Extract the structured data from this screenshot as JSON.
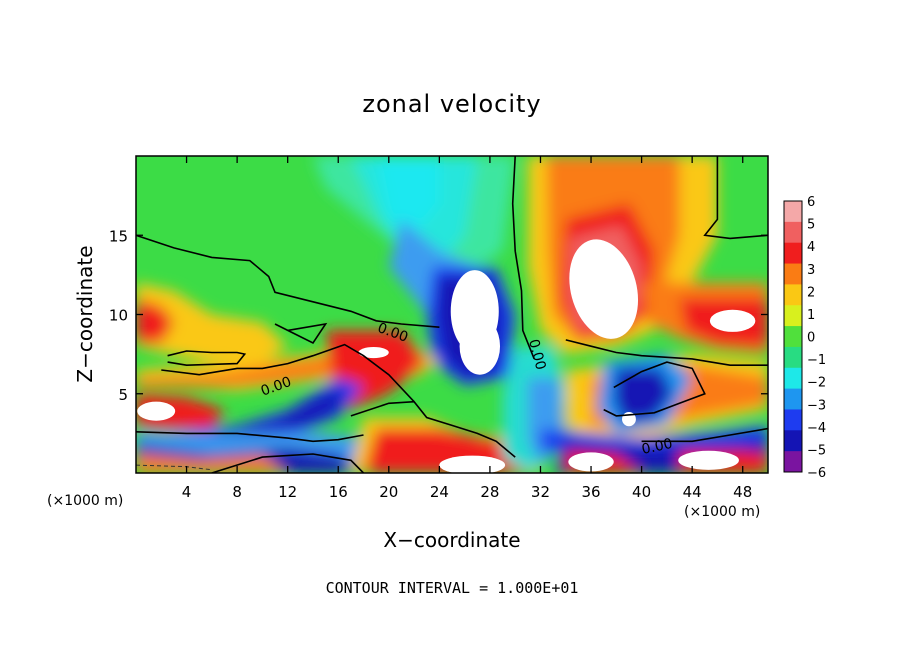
{
  "chart_data": {
    "type": "heatmap",
    "title": "zonal velocity",
    "xlabel": "X−coordinate",
    "ylabel": "Z−coordinate",
    "x_unit_left": "(×1000 m)",
    "x_unit_right": "(×1000 m)",
    "footer": "CONTOUR INTERVAL = 1.000E+01",
    "xlim": [
      0,
      50
    ],
    "ylim": [
      0,
      20
    ],
    "x_ticks": [
      4,
      8,
      12,
      16,
      20,
      24,
      28,
      32,
      36,
      40,
      44,
      48
    ],
    "y_ticks": [
      5,
      10,
      15
    ],
    "x_tick_labels": [
      "4",
      "8",
      "12",
      "16",
      "20",
      "24",
      "28",
      "32",
      "36",
      "40",
      "44",
      "48"
    ],
    "y_tick_labels": [
      "5",
      "10",
      "15"
    ],
    "colorbar": {
      "labels": [
        "6",
        "5",
        "4",
        "3",
        "2",
        "1",
        "0",
        "−1",
        "−2",
        "−3",
        "−4",
        "−5",
        "−6"
      ],
      "values": [
        6,
        5,
        4,
        3,
        2,
        1,
        0,
        -1,
        -2,
        -3,
        -4,
        -5,
        -6
      ],
      "colors": [
        "#f4a8a8",
        "#f06060",
        "#f01e1e",
        "#fa7c14",
        "#fac814",
        "#d8f01e",
        "#50e03c",
        "#28dc82",
        "#1ee8e8",
        "#1e96f0",
        "#1e3cf0",
        "#1414b4",
        "#7a14a0"
      ],
      "saturation_color": "#ffffff"
    },
    "contour_labels": [
      "0.00",
      "0.00",
      "0.00",
      "0.00"
    ],
    "features": [
      {
        "x": 27.0,
        "z": 10.0,
        "value": -8,
        "note": "strong negative core"
      },
      {
        "x": 37.0,
        "z": 11.5,
        "value": 8,
        "note": "strong positive core"
      },
      {
        "x": 47.5,
        "z": 9.5,
        "value": 7,
        "note": "positive core"
      },
      {
        "x": 1.5,
        "z": 3.8,
        "value": 6,
        "note": "positive core"
      },
      {
        "x": 18.5,
        "z": 7.5,
        "value": 7,
        "note": "positive core"
      },
      {
        "x": 26.5,
        "z": 0.5,
        "value": 7,
        "note": "positive core"
      },
      {
        "x": 36.0,
        "z": 1.0,
        "value": 6,
        "note": "positive core"
      },
      {
        "x": 45.0,
        "z": 1.0,
        "value": 6,
        "note": "positive core"
      },
      {
        "x": 39.0,
        "z": 3.5,
        "value": 5,
        "note": "positive core"
      },
      {
        "x": 13.0,
        "z": 4.2,
        "value": -5,
        "note": "negative band"
      },
      {
        "x": 42.5,
        "z": 1.5,
        "value": -5,
        "note": "negative band"
      },
      {
        "x": 5.5,
        "z": 2.0,
        "value": -4,
        "note": "negative band"
      },
      {
        "x": 20.5,
        "z": 15.0,
        "value": -2,
        "note": "upper negative"
      },
      {
        "x": 33.0,
        "z": 4.0,
        "value": -3,
        "note": "negative column"
      }
    ]
  }
}
